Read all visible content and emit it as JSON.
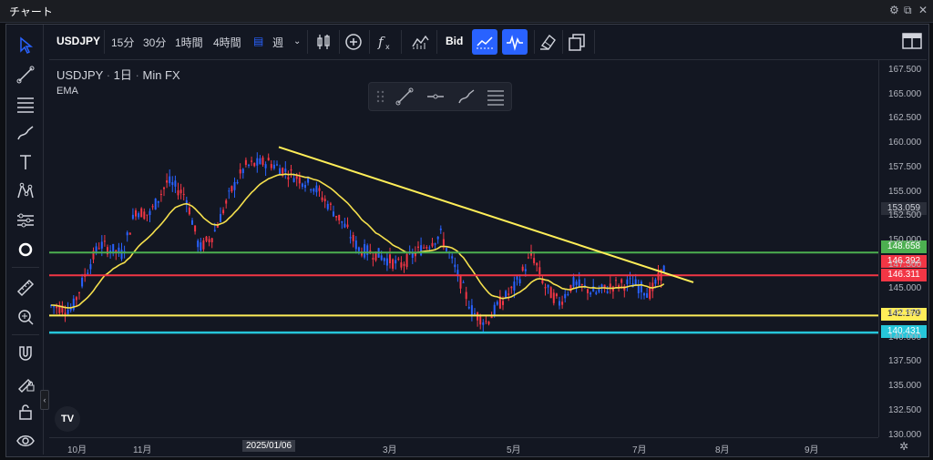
{
  "window": {
    "title": "チャート"
  },
  "toolbar": {
    "symbol": "USDJPY",
    "intervals": [
      "15分",
      "30分",
      "1時間",
      "4時間"
    ],
    "interval_week_icon": "calendar-icon",
    "interval_week": "週",
    "bid": "Bid"
  },
  "legend": {
    "symbol": "USDJPY",
    "interval": "1日",
    "source": "Min FX",
    "sep": "·",
    "indicator": "EMA"
  },
  "price_axis": {
    "ticks": [
      "167.500",
      "165.000",
      "162.500",
      "160.000",
      "157.500",
      "155.000",
      "152.500",
      "150.000",
      "147.500",
      "145.000",
      "142.500",
      "140.000",
      "137.500",
      "135.000",
      "132.500",
      "130.000"
    ]
  },
  "price_labels": {
    "current": "153.059",
    "green": "148.658",
    "red_top": "146.392",
    "red": "146.311",
    "yellow": "142.179",
    "cyan": "140.431"
  },
  "time_axis": {
    "labels": [
      "10月",
      "11月",
      "2025/01/06",
      "3月",
      "5月",
      "7月",
      "8月",
      "9月"
    ]
  },
  "colors": {
    "up": "#2962ff",
    "down": "#f23645",
    "ema": "#f5e04d",
    "green": "#4caf50",
    "red": "#f23645",
    "yellow": "#ffee58",
    "cyan": "#26c6da",
    "trendline": "#ffee58"
  }
}
